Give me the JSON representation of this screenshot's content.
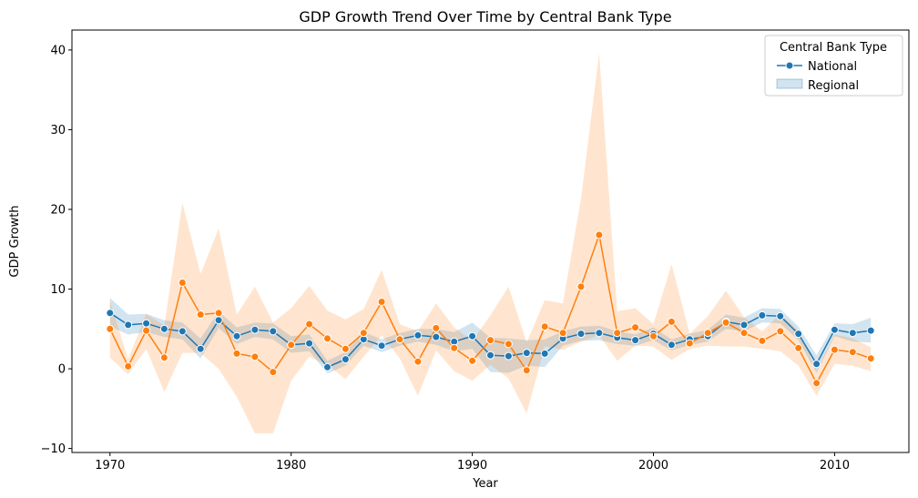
{
  "chart_data": {
    "type": "line",
    "title": "GDP Growth Trend Over Time by Central Bank Type",
    "xlabel": "Year",
    "ylabel": "GDP Growth",
    "xlim": [
      1967.9,
      2014.1
    ],
    "ylim": [
      -10.5,
      42.5
    ],
    "xticks": [
      1970,
      1980,
      1990,
      2000,
      2010
    ],
    "yticks": [
      -10,
      0,
      10,
      20,
      30,
      40
    ],
    "grid": false,
    "legend": {
      "title": "Central Bank Type",
      "placement": "top-right",
      "entries": [
        "National",
        "Regional"
      ]
    },
    "x": [
      1970,
      1971,
      1972,
      1973,
      1974,
      1975,
      1976,
      1977,
      1978,
      1979,
      1980,
      1981,
      1982,
      1983,
      1984,
      1985,
      1986,
      1987,
      1988,
      1989,
      1990,
      1991,
      1992,
      1993,
      1994,
      1995,
      1996,
      1997,
      1998,
      1999,
      2000,
      2001,
      2002,
      2003,
      2004,
      2005,
      2006,
      2007,
      2008,
      2009,
      2010,
      2011,
      2012
    ],
    "series": [
      {
        "color": "#1f77b4",
        "values": [
          7.0,
          5.5,
          5.7,
          5.0,
          4.7,
          2.5,
          6.1,
          4.1,
          4.9,
          4.7,
          3.0,
          3.2,
          0.2,
          1.2,
          3.7,
          2.9,
          3.7,
          4.2,
          4.0,
          3.4,
          4.1,
          1.7,
          1.6,
          2.0,
          1.9,
          3.8,
          4.4,
          4.5,
          3.9,
          3.6,
          4.4,
          3.0,
          3.7,
          4.1,
          5.9,
          5.5,
          6.7,
          6.6,
          4.4,
          0.6,
          4.9,
          4.5,
          4.8
        ],
        "ci_lower": [
          5.3,
          4.3,
          4.6,
          4.0,
          3.7,
          1.3,
          5.1,
          3.1,
          4.0,
          3.7,
          2.0,
          2.2,
          -0.6,
          0.4,
          2.9,
          2.1,
          2.9,
          3.4,
          3.0,
          2.2,
          2.5,
          -0.4,
          -0.5,
          0.4,
          0.2,
          2.9,
          3.5,
          3.6,
          3.1,
          2.9,
          3.6,
          2.3,
          3.0,
          3.4,
          5.0,
          4.7,
          5.8,
          5.7,
          3.6,
          -0.5,
          4.1,
          3.4,
          3.3
        ],
        "ci_upper": [
          8.9,
          6.8,
          6.9,
          6.1,
          5.8,
          3.8,
          7.2,
          5.2,
          5.8,
          5.7,
          4.1,
          4.3,
          1.0,
          2.1,
          4.6,
          3.7,
          4.5,
          5.0,
          5.0,
          4.6,
          5.8,
          3.9,
          3.8,
          3.6,
          3.7,
          4.7,
          5.3,
          5.4,
          4.7,
          4.3,
          5.2,
          3.7,
          4.4,
          4.9,
          6.8,
          6.4,
          7.6,
          7.5,
          5.3,
          1.7,
          5.7,
          5.6,
          6.4
        ]
      },
      {
        "color": "#ff7f0e",
        "values": [
          5.0,
          0.3,
          4.8,
          1.4,
          10.8,
          6.8,
          7.0,
          1.9,
          1.5,
          -0.4,
          3.0,
          5.6,
          3.8,
          2.5,
          4.5,
          8.4,
          3.7,
          0.9,
          5.1,
          2.6,
          1.0,
          3.6,
          3.1,
          -0.2,
          5.3,
          4.5,
          10.3,
          16.8,
          4.5,
          5.2,
          4.1,
          5.9,
          3.2,
          4.5,
          5.8,
          4.5,
          3.5,
          4.7,
          2.6,
          -1.8,
          2.4,
          2.1,
          1.3
        ],
        "ci_lower": [
          1.4,
          -0.7,
          2.5,
          -2.9,
          2.0,
          2.0,
          0.0,
          -3.5,
          -8.1,
          -8.1,
          -1.5,
          1.5,
          0.5,
          -1.3,
          1.5,
          4.2,
          1.3,
          -3.4,
          2.3,
          -0.3,
          -1.5,
          0.5,
          -1.2,
          -5.6,
          2.8,
          2.4,
          3.4,
          4.2,
          1.0,
          2.9,
          2.8,
          1.1,
          2.5,
          2.9,
          2.8,
          2.8,
          2.5,
          2.2,
          0.4,
          -3.4,
          0.6,
          0.4,
          -0.3
        ],
        "ci_upper": [
          8.5,
          1.2,
          6.9,
          5.4,
          20.8,
          11.9,
          17.6,
          6.8,
          10.3,
          5.8,
          7.6,
          10.4,
          7.3,
          6.2,
          7.5,
          12.4,
          5.6,
          4.7,
          8.2,
          5.2,
          3.5,
          6.7,
          10.3,
          3.3,
          8.6,
          8.2,
          21.4,
          39.6,
          7.2,
          7.6,
          5.6,
          13.1,
          4.4,
          6.6,
          9.8,
          6.5,
          4.7,
          6.9,
          4.8,
          -0.2,
          4.3,
          3.8,
          2.7
        ]
      }
    ]
  }
}
